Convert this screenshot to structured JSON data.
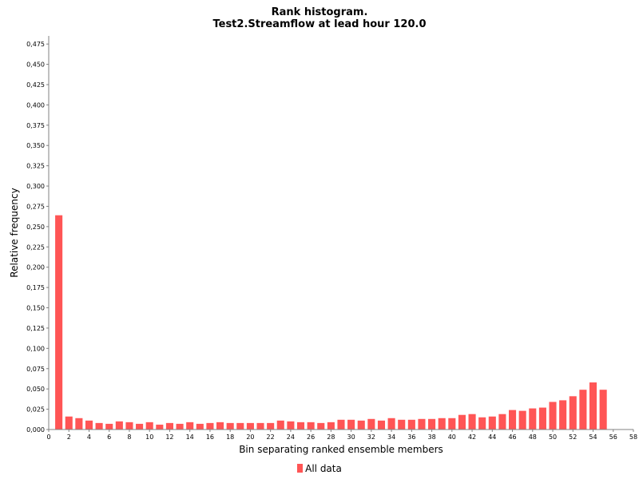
{
  "chart_data": {
    "type": "bar",
    "title": "Rank histogram.",
    "subtitle": "Test2.Streamflow at lead hour 120.0",
    "xlabel": "Bin separating ranked ensemble members",
    "ylabel": "Relative frequency",
    "xlim": [
      0,
      58
    ],
    "ylim": [
      0,
      0.485
    ],
    "x_ticks": [
      "0",
      "2",
      "4",
      "6",
      "8",
      "10",
      "12",
      "14",
      "16",
      "18",
      "20",
      "22",
      "24",
      "26",
      "28",
      "30",
      "32",
      "34",
      "36",
      "38",
      "40",
      "42",
      "44",
      "46",
      "48",
      "50",
      "52",
      "54",
      "56",
      "58"
    ],
    "y_ticks": [
      "0,000",
      "0,025",
      "0,050",
      "0,075",
      "0,100",
      "0,125",
      "0,150",
      "0,175",
      "0,200",
      "0,225",
      "0,250",
      "0,275",
      "0,300",
      "0,325",
      "0,350",
      "0,375",
      "0,400",
      "0,425",
      "0,450",
      "0,475"
    ],
    "grid": false,
    "legend_position": "bottom-center",
    "bar_color": "#ff5555",
    "series": [
      {
        "name": "All data",
        "x": [
          1,
          2,
          3,
          4,
          5,
          6,
          7,
          8,
          9,
          10,
          11,
          12,
          13,
          14,
          15,
          16,
          17,
          18,
          19,
          20,
          21,
          22,
          23,
          24,
          25,
          26,
          27,
          28,
          29,
          30,
          31,
          32,
          33,
          34,
          35,
          36,
          37,
          38,
          39,
          40,
          41,
          42,
          43,
          44,
          45,
          46,
          47,
          48,
          49,
          50,
          51,
          52,
          53,
          54,
          55
        ],
        "values": [
          0.264,
          0.016,
          0.014,
          0.011,
          0.008,
          0.007,
          0.01,
          0.009,
          0.007,
          0.009,
          0.006,
          0.008,
          0.007,
          0.009,
          0.007,
          0.008,
          0.009,
          0.008,
          0.008,
          0.008,
          0.008,
          0.008,
          0.011,
          0.01,
          0.009,
          0.009,
          0.008,
          0.009,
          0.012,
          0.012,
          0.011,
          0.013,
          0.011,
          0.014,
          0.012,
          0.012,
          0.013,
          0.013,
          0.014,
          0.014,
          0.018,
          0.019,
          0.015,
          0.016,
          0.019,
          0.024,
          0.023,
          0.026,
          0.027,
          0.034,
          0.036,
          0.041,
          0.049,
          0.058,
          0.049
        ]
      }
    ]
  }
}
